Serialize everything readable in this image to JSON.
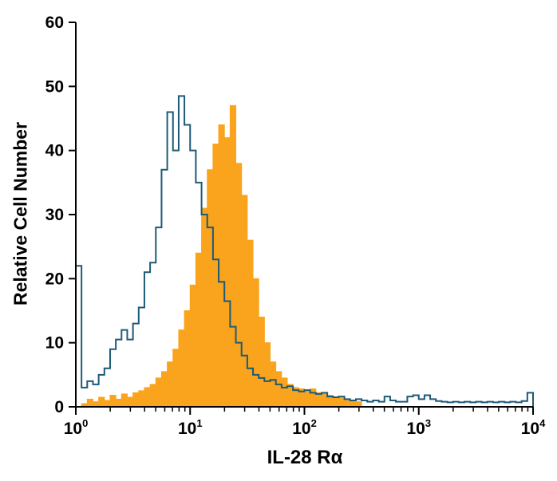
{
  "chart_data": {
    "type": "histogram-step",
    "title": "",
    "xlabel": "IL-28 Rα",
    "ylabel": "Relative Cell Number",
    "x_scale": "log10",
    "x_range_log": [
      0,
      4
    ],
    "ylim": [
      0,
      60
    ],
    "y_ticks": [
      0,
      10,
      20,
      30,
      40,
      50,
      60
    ],
    "x_major_tick_exponents": [
      0,
      1,
      2,
      3,
      4
    ],
    "x_tick_base": "10",
    "grid": false,
    "legend": false,
    "start_log": 0,
    "bin_width_log": 0.05,
    "colors": {
      "axis": "#000000",
      "open_series": "#1d5a77",
      "filled_series": "#f9a41c"
    },
    "series": [
      {
        "name": "filled-histogram",
        "style": "filled",
        "color": "#f9a41c",
        "values": [
          0,
          0.5,
          1.2,
          0.8,
          1.5,
          1,
          1.8,
          1.2,
          2,
          1.5,
          2.2,
          2.5,
          3,
          3.5,
          4.5,
          5.5,
          7,
          9,
          12,
          15,
          19,
          24,
          31,
          37,
          41,
          44,
          42,
          47,
          38,
          33,
          26,
          20,
          14,
          10,
          7,
          5.5,
          4.5,
          3.5,
          3,
          2.8,
          2.6,
          2.8,
          2.2,
          2,
          1.8,
          1.5,
          1.4,
          1.2,
          1,
          0.8,
          0,
          0,
          0,
          0,
          0,
          0,
          0,
          0,
          0,
          0,
          0,
          0,
          0,
          0,
          0,
          0,
          0,
          0,
          0,
          0,
          0,
          0,
          0,
          0,
          0,
          0,
          0,
          0,
          0,
          0
        ]
      },
      {
        "name": "open-histogram",
        "style": "open",
        "color": "#1d5a77",
        "values": [
          22,
          3,
          4,
          3.5,
          5,
          6,
          9,
          10.5,
          12,
          10.5,
          13,
          15.5,
          21,
          22.5,
          28,
          37,
          46,
          40,
          48.5,
          44,
          40,
          35,
          30,
          28,
          23,
          19.5,
          16.5,
          12.5,
          10,
          8,
          6,
          5,
          4.5,
          4,
          4.2,
          3.5,
          3,
          3.2,
          2.6,
          2.4,
          2.6,
          2.2,
          2,
          2.2,
          1.6,
          1.5,
          1.6,
          1.2,
          1,
          1.2,
          1,
          0.8,
          1,
          0.8,
          1.6,
          1,
          0.8,
          0.8,
          1.6,
          1.8,
          1.2,
          1.8,
          1.2,
          0.9,
          0.8,
          0.7,
          0.8,
          0.7,
          0.8,
          0.7,
          0.8,
          0.7,
          0.8,
          0.7,
          0.8,
          0.7,
          0.8,
          0.7,
          0.9,
          2.2
        ]
      }
    ]
  }
}
